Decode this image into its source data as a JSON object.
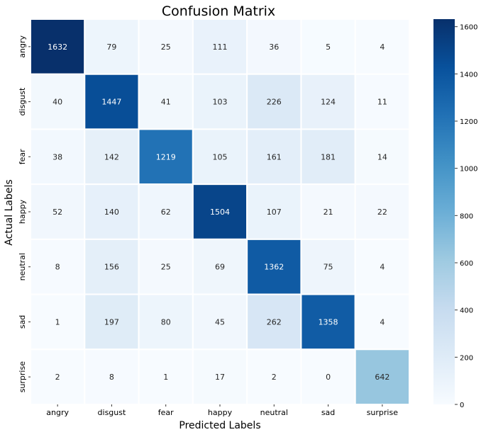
{
  "chart_data": {
    "type": "heatmap",
    "title": "Confusion Matrix",
    "xlabel": "Predicted Labels",
    "ylabel": "Actual Labels",
    "x_categories": [
      "angry",
      "disgust",
      "fear",
      "happy",
      "neutral",
      "sad",
      "surprise"
    ],
    "y_categories": [
      "angry",
      "disgust",
      "fear",
      "happy",
      "neutral",
      "sad",
      "surprise"
    ],
    "values": [
      [
        1632,
        79,
        25,
        111,
        36,
        5,
        4
      ],
      [
        40,
        1447,
        41,
        103,
        226,
        124,
        11
      ],
      [
        38,
        142,
        1219,
        105,
        161,
        181,
        14
      ],
      [
        52,
        140,
        62,
        1504,
        107,
        21,
        22
      ],
      [
        8,
        156,
        25,
        69,
        1362,
        75,
        4
      ],
      [
        1,
        197,
        80,
        45,
        262,
        1358,
        4
      ],
      [
        2,
        8,
        1,
        17,
        2,
        0,
        642
      ]
    ],
    "colorscale": "Blues",
    "colorscale_stops": [
      "#f7fbff",
      "#deebf7",
      "#c6dbef",
      "#9ecae1",
      "#6baed6",
      "#4292c6",
      "#2171b5",
      "#08519c",
      "#08306b"
    ],
    "colorbar": {
      "range": [
        0,
        1632
      ],
      "ticks": [
        0,
        200,
        400,
        600,
        800,
        1000,
        1200,
        1400,
        1600
      ]
    },
    "annot_light_color": "#ffffff",
    "annot_dark_color": "#262626"
  }
}
